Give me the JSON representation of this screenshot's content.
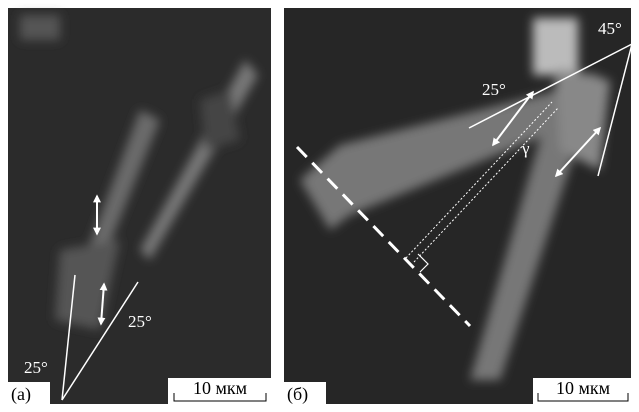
{
  "panels": [
    {
      "label": "(а)",
      "scale": "10 мкм",
      "angles": [
        "25°",
        "25°"
      ]
    },
    {
      "label": "(б)",
      "scale": "10 мкм",
      "angles": [
        "25°",
        "45°"
      ],
      "symbol": "γ"
    }
  ]
}
